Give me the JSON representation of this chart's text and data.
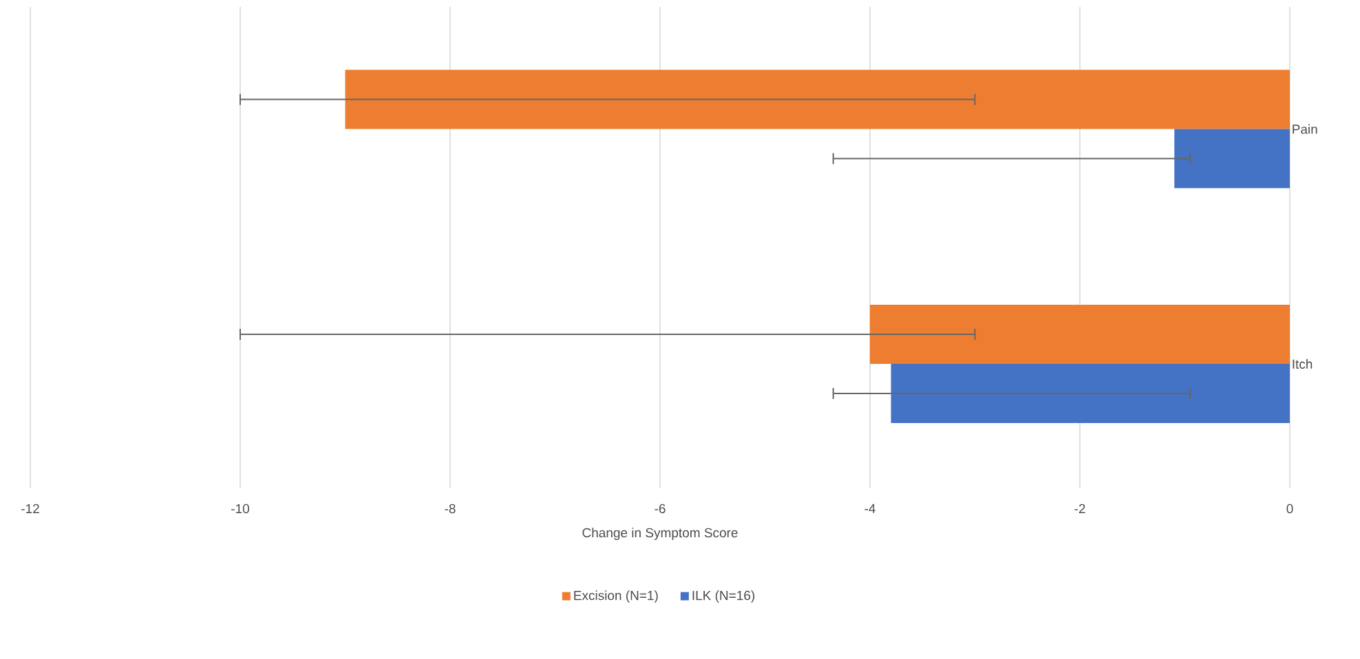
{
  "chart_data": {
    "type": "bar",
    "orientation": "horizontal",
    "xlabel": "Change in Symptom Score",
    "categories": [
      "Pain",
      "Itch"
    ],
    "series": [
      {
        "name": "Excision (N=1)",
        "color": "#ed7d31",
        "values": [
          -9.0,
          -4.0
        ],
        "errors": [
          [
            -10.0,
            -3.0
          ],
          [
            -10.0,
            -3.0
          ]
        ]
      },
      {
        "name": "ILK (N=16)",
        "color": "#4472c4",
        "values": [
          -1.1,
          -3.8
        ],
        "errors": [
          [
            -4.35,
            -0.95
          ],
          [
            -4.35,
            -0.95
          ]
        ]
      }
    ],
    "xlim": [
      -12,
      0
    ],
    "xticks": [
      -12,
      -10,
      -8,
      -6,
      -4,
      -2,
      0
    ],
    "grid": "x",
    "legend": "bottom"
  }
}
